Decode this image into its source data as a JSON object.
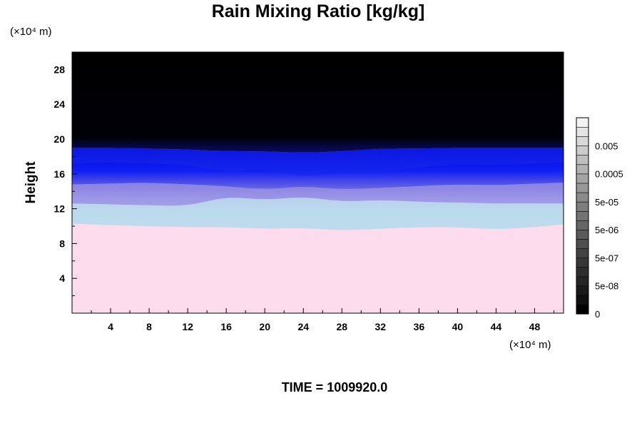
{
  "chart_data": {
    "type": "heatmap",
    "title": "Rain Mixing Ratio [kg/kg]",
    "ylabel": "Height",
    "y_unit": "(×10⁴ m)",
    "x_unit": "(×10⁴ m)",
    "xlim": [
      0,
      51
    ],
    "ylim": [
      0,
      30
    ],
    "x_ticks": [
      4,
      8,
      12,
      16,
      20,
      24,
      28,
      32,
      36,
      40,
      44,
      48
    ],
    "y_ticks": [
      4,
      8,
      12,
      16,
      20,
      24,
      28
    ],
    "fields": {
      "surface_color": "#fcdcec",
      "upper_color": "#000000",
      "rain_top_edge": [
        {
          "x": 0,
          "y": 19.0
        },
        {
          "x": 4,
          "y": 19.0
        },
        {
          "x": 8,
          "y": 18.9
        },
        {
          "x": 12,
          "y": 18.8
        },
        {
          "x": 16,
          "y": 18.6
        },
        {
          "x": 20,
          "y": 18.6
        },
        {
          "x": 24,
          "y": 18.4
        },
        {
          "x": 28,
          "y": 18.6
        },
        {
          "x": 32,
          "y": 18.9
        },
        {
          "x": 36,
          "y": 18.9
        },
        {
          "x": 40,
          "y": 19.0
        },
        {
          "x": 44,
          "y": 19.0
        },
        {
          "x": 48,
          "y": 19.0
        },
        {
          "x": 51,
          "y": 19.0
        }
      ],
      "pink_top_edge": [
        {
          "x": 0,
          "y": 10.3
        },
        {
          "x": 4,
          "y": 10.1
        },
        {
          "x": 8,
          "y": 10.0
        },
        {
          "x": 12,
          "y": 9.9
        },
        {
          "x": 16,
          "y": 9.9
        },
        {
          "x": 20,
          "y": 9.7
        },
        {
          "x": 24,
          "y": 9.8
        },
        {
          "x": 28,
          "y": 9.5
        },
        {
          "x": 32,
          "y": 9.7
        },
        {
          "x": 36,
          "y": 9.9
        },
        {
          "x": 40,
          "y": 9.9
        },
        {
          "x": 44,
          "y": 9.6
        },
        {
          "x": 48,
          "y": 9.9
        },
        {
          "x": 51,
          "y": 10.2
        }
      ],
      "pale_blue_top_edge": [
        {
          "x": 0,
          "y": 12.6
        },
        {
          "x": 4,
          "y": 12.5
        },
        {
          "x": 8,
          "y": 12.4
        },
        {
          "x": 12,
          "y": 12.3
        },
        {
          "x": 16,
          "y": 13.4
        },
        {
          "x": 20,
          "y": 13.0
        },
        {
          "x": 24,
          "y": 13.4
        },
        {
          "x": 28,
          "y": 12.8
        },
        {
          "x": 32,
          "y": 13.0
        },
        {
          "x": 36,
          "y": 12.8
        },
        {
          "x": 40,
          "y": 12.7
        },
        {
          "x": 44,
          "y": 12.6
        },
        {
          "x": 48,
          "y": 12.6
        },
        {
          "x": 51,
          "y": 12.6
        }
      ],
      "lavender_top_edge": [
        {
          "x": 0,
          "y": 14.8
        },
        {
          "x": 4,
          "y": 14.9
        },
        {
          "x": 8,
          "y": 15.0
        },
        {
          "x": 12,
          "y": 14.8
        },
        {
          "x": 16,
          "y": 14.6
        },
        {
          "x": 20,
          "y": 14.2
        },
        {
          "x": 24,
          "y": 14.6
        },
        {
          "x": 28,
          "y": 14.2
        },
        {
          "x": 32,
          "y": 14.4
        },
        {
          "x": 36,
          "y": 14.6
        },
        {
          "x": 40,
          "y": 14.8
        },
        {
          "x": 44,
          "y": 14.7
        },
        {
          "x": 48,
          "y": 14.9
        },
        {
          "x": 51,
          "y": 15.0
        }
      ],
      "blue_top_edge": [
        {
          "x": 0,
          "y": 17.2
        },
        {
          "x": 4,
          "y": 17.3
        },
        {
          "x": 8,
          "y": 17.2
        },
        {
          "x": 12,
          "y": 17.0
        },
        {
          "x": 16,
          "y": 16.2
        },
        {
          "x": 20,
          "y": 16.6
        },
        {
          "x": 24,
          "y": 15.6
        },
        {
          "x": 28,
          "y": 16.2
        },
        {
          "x": 32,
          "y": 16.0
        },
        {
          "x": 36,
          "y": 16.8
        },
        {
          "x": 40,
          "y": 17.1
        },
        {
          "x": 44,
          "y": 17.0
        },
        {
          "x": 48,
          "y": 17.2
        },
        {
          "x": 51,
          "y": 17.3
        }
      ]
    },
    "colorbar": {
      "labels": [
        "0",
        "5e-08",
        "5e-07",
        "5e-06",
        "5e-05",
        "0.0005",
        "0.005"
      ],
      "shades": [
        "#000000",
        "#101010",
        "#1a1a1a",
        "#242424",
        "#2e2e2e",
        "#383838",
        "#424242",
        "#4e4e4e",
        "#5a5a5a",
        "#666666",
        "#727272",
        "#7e7e7e",
        "#8a8a8a",
        "#979797",
        "#a4a4a4",
        "#b1b1b1",
        "#bebebe",
        "#cbcbcb",
        "#d8d8d8",
        "#e5e5e5",
        "#f2f2f2"
      ]
    }
  },
  "footer": {
    "time_label": "TIME = 1009920.0"
  }
}
